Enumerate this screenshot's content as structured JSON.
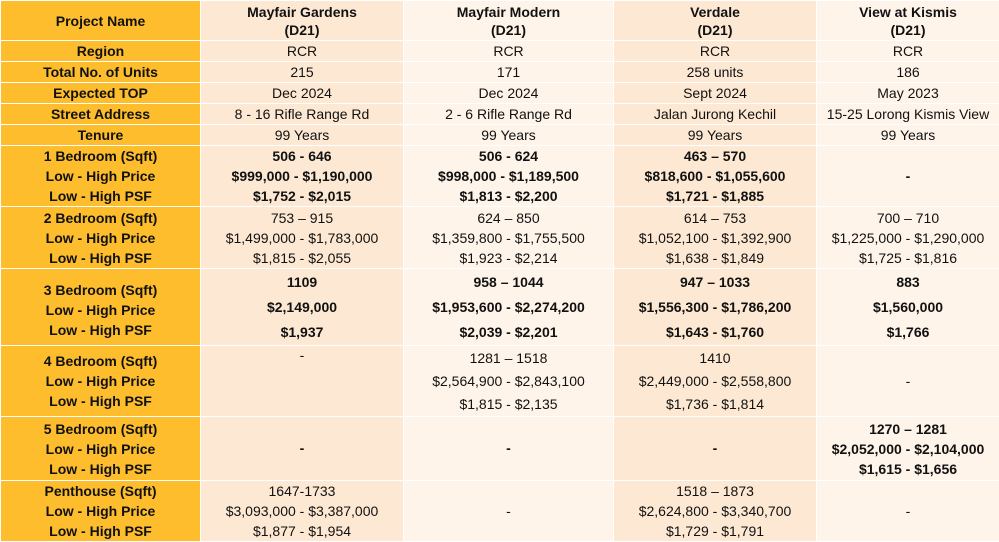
{
  "header": {
    "label": "Project Name",
    "projects": [
      {
        "name": "Mayfair Gardens",
        "district": "(D21)"
      },
      {
        "name": "Mayfair Modern",
        "district": "(D21)"
      },
      {
        "name": "Verdale",
        "district": "(D21)"
      },
      {
        "name": "View at Kismis",
        "district": "(D21)"
      }
    ]
  },
  "rows": {
    "region": {
      "label": "Region",
      "values": [
        "RCR",
        "RCR",
        "RCR",
        "RCR"
      ]
    },
    "units": {
      "label": "Total No. of Units",
      "values": [
        "215",
        "171",
        "258 units",
        "186"
      ]
    },
    "top": {
      "label": "Expected TOP",
      "values": [
        "Dec 2024",
        "Dec 2024",
        "Sept 2024",
        "May 2023"
      ]
    },
    "address": {
      "label": "Street Address",
      "values": [
        "8 - 16 Rifle Range Rd",
        "2 - 6 Rifle Range Rd",
        "Jalan Jurong Kechil",
        "15-25 Lorong Kismis View"
      ]
    },
    "tenure": {
      "label": "Tenure",
      "values": [
        "99 Years",
        "99 Years",
        "99 Years",
        "99 Years"
      ]
    }
  },
  "groups": {
    "labels": {
      "b1": "1 Bedroom (Sqft)",
      "b2": "2 Bedroom (Sqft)",
      "b3": "3 Bedroom (Sqft)",
      "b4": "4 Bedroom (Sqft)",
      "b5": "5 Bedroom (Sqft)",
      "ph": "Penthouse (Sqft)",
      "price": "Low - High Price",
      "psf": "Low - High PSF"
    },
    "b1": [
      {
        "size": "506 - 646",
        "price": "$999,000 - $1,190,000",
        "psf": "$1,752 - $2,015"
      },
      {
        "size": "506 - 624",
        "price": "$998,000 - $1,189,500",
        "psf": "$1,813 - $2,200"
      },
      {
        "size": "463 – 570",
        "price": "$818,600 - $1,055,600",
        "psf": "$1,721 - $1,885"
      },
      {
        "dash": "-"
      }
    ],
    "b2": [
      {
        "size": "753 – 915",
        "price": "$1,499,000 - $1,783,000",
        "psf": "$1,815 - $2,055"
      },
      {
        "size": "624 – 850",
        "price": "$1,359,800 - $1,755,500",
        "psf": "$1,923 - $2,214"
      },
      {
        "size": "614 – 753",
        "price": "$1,052,100 - $1,392,900",
        "psf": "$1,638 - $1,849"
      },
      {
        "size": "700 – 710",
        "price": "$1,225,000 - $1,290,000",
        "psf": "$1,725 - $1,816"
      }
    ],
    "b3": [
      {
        "size": "1109",
        "price": "$2,149,000",
        "psf": "$1,937"
      },
      {
        "size": "958 – 1044",
        "price": "$1,953,600 - $2,274,200",
        "psf": "$2,039 - $2,201"
      },
      {
        "size": "947 – 1033",
        "price": "$1,556,300 - $1,786,200",
        "psf": "$1,643 - $1,760"
      },
      {
        "size": "883",
        "price": "$1,560,000",
        "psf": "$1,766"
      }
    ],
    "b4": [
      {
        "dash": "-"
      },
      {
        "size": "1281 – 1518",
        "price": "$2,564,900 - $2,843,100",
        "psf": "$1,815 - $2,135"
      },
      {
        "size": "1410",
        "price": "$2,449,000 - $2,558,800",
        "psf": "$1,736 - $1,814"
      },
      {
        "dash": "-"
      }
    ],
    "b5": [
      {
        "dash": "-"
      },
      {
        "dash": "-"
      },
      {
        "dash": "-"
      },
      {
        "size": "1270 – 1281",
        "price": "$2,052,000 - $2,104,000",
        "psf": "$1,615 - $1,656"
      }
    ],
    "ph": [
      {
        "size": "1647-1733",
        "price": "$3,093,000 - $3,387,000",
        "psf": "$1,877 - $1,954"
      },
      {
        "dash": "-"
      },
      {
        "size": "1518 – 1873",
        "price": "$2,624,800 - $3,340,700",
        "psf": "$1,729 - $1,791"
      },
      {
        "dash": "-"
      }
    ]
  }
}
